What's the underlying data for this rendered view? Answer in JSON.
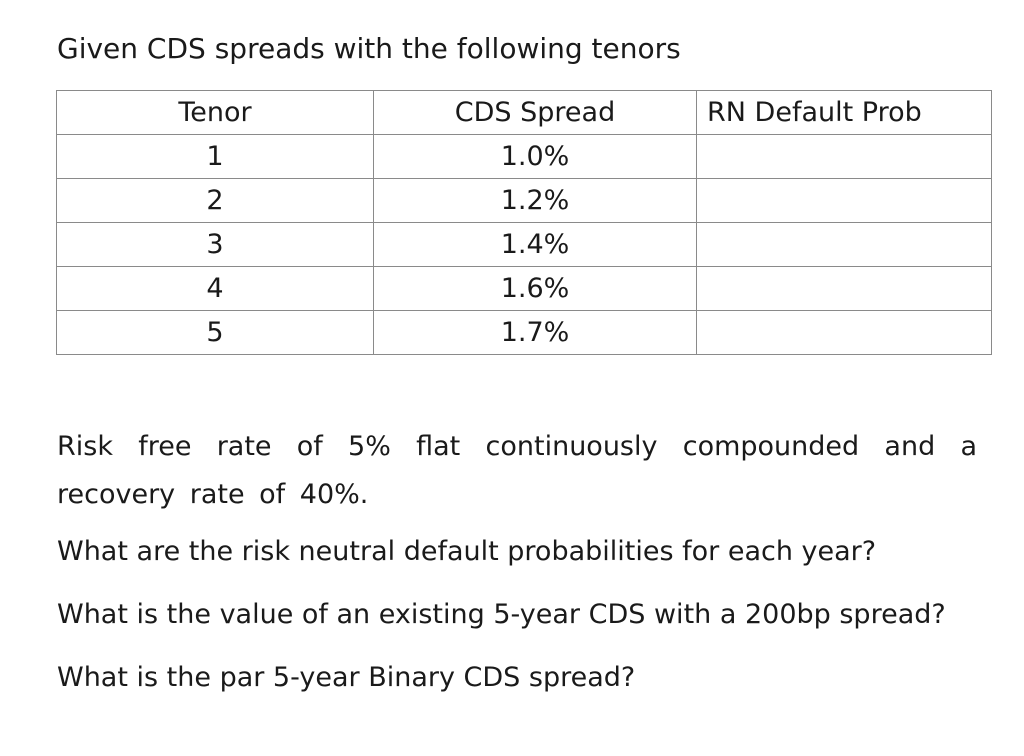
{
  "heading": "Given CDS spreads with the following tenors",
  "table": {
    "headers": [
      "Tenor",
      "CDS Spread",
      "RN Default Prob"
    ],
    "rows": [
      {
        "tenor": "1",
        "spread": "1.0%",
        "prob": ""
      },
      {
        "tenor": "2",
        "spread": "1.2%",
        "prob": ""
      },
      {
        "tenor": "3",
        "spread": "1.4%",
        "prob": ""
      },
      {
        "tenor": "4",
        "spread": "1.6%",
        "prob": ""
      },
      {
        "tenor": "5",
        "spread": "1.7%",
        "prob": ""
      }
    ]
  },
  "paragraphs": {
    "assumptions": "Risk free rate of 5% flat continuously compounded and a recovery rate of 40%.",
    "question_1": "What are the risk neutral default probabilities for each year?",
    "question_2": "What is the value of an existing 5-year CDS with a 200bp spread?",
    "question_3": "What is the par 5-year Binary CDS spread?"
  }
}
